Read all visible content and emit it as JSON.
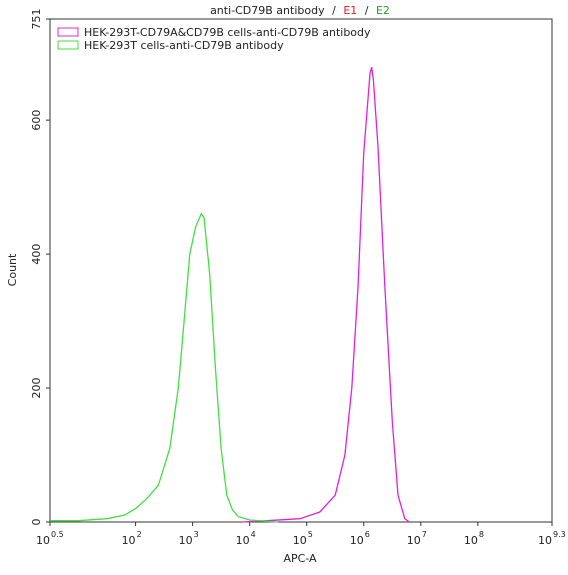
{
  "chart_data": {
    "type": "line",
    "title": {
      "text": "anti-CD79B antibody",
      "separator": "/",
      "gates": [
        {
          "name": "E1",
          "color": "#e02020"
        },
        {
          "name": "E2",
          "color": "#20a020"
        }
      ]
    },
    "xlabel": "APC-A",
    "ylabel": "Count",
    "xscale": "log",
    "xlim": [
      3.1623,
      1995262315
    ],
    "xticks": [
      {
        "value": 3.1623,
        "label": "10",
        "exponent": "0.5"
      },
      {
        "value": 100,
        "label": "10",
        "exponent": "2"
      },
      {
        "value": 1000,
        "label": "10",
        "exponent": "3"
      },
      {
        "value": 10000,
        "label": "10",
        "exponent": "4"
      },
      {
        "value": 100000,
        "label": "10",
        "exponent": "5"
      },
      {
        "value": 1000000,
        "label": "10",
        "exponent": "6"
      },
      {
        "value": 10000000,
        "label": "10",
        "exponent": "7"
      },
      {
        "value": 100000000,
        "label": "10",
        "exponent": "8"
      },
      {
        "value": 1995262315,
        "label": "10",
        "exponent": "9.3"
      }
    ],
    "ylim": [
      0,
      751
    ],
    "yticks": [
      0,
      200,
      400,
      600,
      751
    ],
    "legend": "upper left",
    "series": [
      {
        "name": "HEK-293T-CD79A&CD79B cells-anti-CD79B antibody",
        "color": "#e020e0",
        "x": [
          7244,
          19953,
          75858,
          169824,
          316228,
          467735,
          616595,
          794328,
          1000000,
          1288250,
          1380384,
          1479108,
          1778279,
          2344229,
          3162278,
          3981072,
          5248075,
          6309573
        ],
        "values": [
          0,
          2,
          5,
          15,
          40,
          100,
          200,
          350,
          550,
          670,
          679,
          660,
          560,
          350,
          150,
          40,
          5,
          0
        ]
      },
      {
        "name": "HEK-293T cells-anti-CD79B antibody",
        "color": "#40e040",
        "x": [
          3.1623,
          10,
          31.6,
          63.1,
          100,
          158,
          251,
          398,
          562,
          708,
          891,
          1122,
          1413,
          1585,
          1995,
          2512,
          3162,
          3981,
          5012,
          6310,
          10000,
          19953,
          31623
        ],
        "values": [
          2,
          2,
          5,
          10,
          20,
          35,
          55,
          110,
          200,
          300,
          400,
          440,
          460,
          455,
          370,
          230,
          110,
          40,
          18,
          8,
          3,
          1,
          0
        ]
      }
    ]
  }
}
